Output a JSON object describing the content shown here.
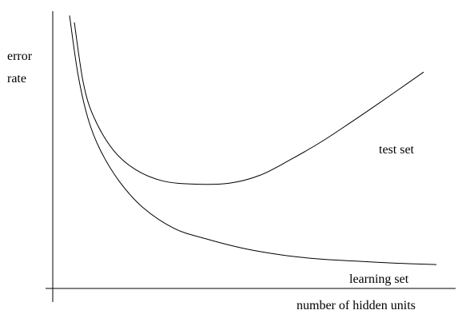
{
  "chart_data": {
    "type": "line",
    "title": "",
    "xlabel": "number of hidden units",
    "ylabel_lines": [
      "error",
      "rate"
    ],
    "grid": false,
    "legend": "none",
    "series": [
      {
        "name": "test set",
        "color": "#000000",
        "points": [
          [
            0.0,
            1.0
          ],
          [
            0.0254,
            0.754
          ],
          [
            0.0556,
            0.612
          ],
          [
            0.111,
            0.477
          ],
          [
            0.175,
            0.396
          ],
          [
            0.254,
            0.349
          ],
          [
            0.349,
            0.336
          ],
          [
            0.444,
            0.34
          ],
          [
            0.532,
            0.373
          ],
          [
            0.619,
            0.437
          ],
          [
            0.706,
            0.509
          ],
          [
            0.794,
            0.592
          ],
          [
            0.873,
            0.669
          ],
          [
            1.0,
            0.796
          ]
        ]
      },
      {
        "name": "learning set",
        "color": "#000000",
        "points": [
          [
            0.0,
            1.028
          ],
          [
            0.0231,
            0.786
          ],
          [
            0.0502,
            0.606
          ],
          [
            0.0835,
            0.477
          ],
          [
            0.136,
            0.347
          ],
          [
            0.201,
            0.239
          ],
          [
            0.286,
            0.154
          ],
          [
            0.369,
            0.113
          ],
          [
            0.473,
            0.073
          ],
          [
            0.577,
            0.046
          ],
          [
            0.681,
            0.029
          ],
          [
            0.785,
            0.02
          ],
          [
            0.888,
            0.012
          ],
          [
            1.0,
            0.006
          ]
        ]
      }
    ]
  }
}
